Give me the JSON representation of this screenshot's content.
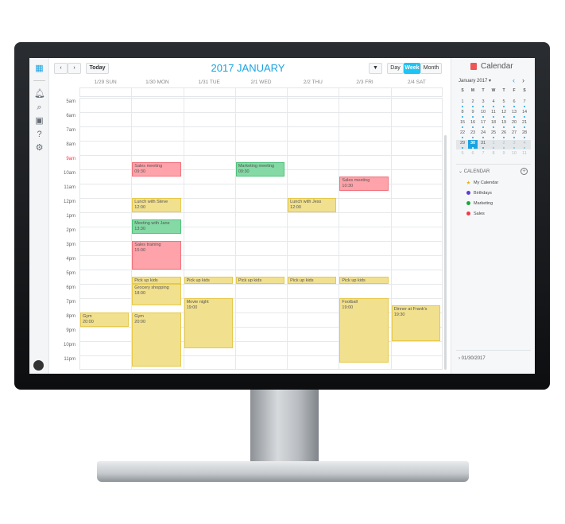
{
  "header": {
    "title": "2017 JANUARY",
    "today_label": "Today",
    "views": [
      "Day",
      "Week",
      "Month"
    ],
    "active_view": "Week"
  },
  "days": [
    "1/29 SUN",
    "1/30 MON",
    "1/31 TUE",
    "2/1 WED",
    "2/2 THU",
    "2/3 FRI",
    "2/4 SAT"
  ],
  "hours": [
    "5am",
    "6am",
    "7am",
    "8am",
    "9am",
    "10am",
    "11am",
    "12pm",
    "1pm",
    "2pm",
    "3pm",
    "4pm",
    "5pm",
    "6pm",
    "7pm",
    "8pm",
    "9pm",
    "10pm",
    "11pm"
  ],
  "current_hour_label": "9am",
  "colors": {
    "accent": "#1aa3e0",
    "yellow": "#f1e08e",
    "red": "#ffa3aa",
    "green": "#84d9a4",
    "birthdays": "#5b3fd0",
    "marketing": "#19a83c",
    "sales": "#f2394a",
    "my_calendar": "#e6b800"
  },
  "events": [
    {
      "title": "Sales meeting",
      "time": "09:30",
      "day": 1,
      "start": 9.5,
      "end": 10.5,
      "color": "red"
    },
    {
      "title": "Marketing meeting",
      "time": "09:30",
      "day": 3,
      "start": 9.5,
      "end": 10.5,
      "color": "green"
    },
    {
      "title": "Sales meeting",
      "time": "10:30",
      "day": 5,
      "start": 10.5,
      "end": 11.5,
      "color": "red"
    },
    {
      "title": "Lunch with Steve",
      "time": "12:00",
      "day": 1,
      "start": 12,
      "end": 13,
      "color": "yellow"
    },
    {
      "title": "Lunch with Jess",
      "time": "12:00",
      "day": 4,
      "start": 12,
      "end": 13,
      "color": "yellow"
    },
    {
      "title": "Meeting with Jane",
      "time": "13:30",
      "day": 1,
      "start": 13.5,
      "end": 14.5,
      "color": "green"
    },
    {
      "title": "Sales training",
      "time": "15:00",
      "day": 1,
      "start": 15,
      "end": 17,
      "color": "red"
    },
    {
      "title": "Pick up kids",
      "time": "",
      "day": 1,
      "start": 17.5,
      "end": 18,
      "color": "yellow"
    },
    {
      "title": "Pick up kids",
      "time": "",
      "day": 2,
      "start": 17.5,
      "end": 18,
      "color": "yellow"
    },
    {
      "title": "Pick up kids",
      "time": "",
      "day": 3,
      "start": 17.5,
      "end": 18,
      "color": "yellow"
    },
    {
      "title": "Pick up kids",
      "time": "",
      "day": 4,
      "start": 17.5,
      "end": 18,
      "color": "yellow"
    },
    {
      "title": "Pick up kids",
      "time": "",
      "day": 5,
      "start": 17.5,
      "end": 18,
      "color": "yellow"
    },
    {
      "title": "Grocery shopping",
      "time": "18:00",
      "day": 1,
      "start": 18,
      "end": 19.5,
      "color": "yellow"
    },
    {
      "title": "Movie night",
      "time": "19:00",
      "day": 2,
      "start": 19,
      "end": 22.5,
      "color": "yellow"
    },
    {
      "title": "Football",
      "time": "19:00",
      "day": 5,
      "start": 19,
      "end": 23.5,
      "color": "yellow"
    },
    {
      "title": "Dinner at Frank's",
      "time": "19:30",
      "day": 6,
      "start": 19.5,
      "end": 22,
      "color": "yellow"
    },
    {
      "title": "Gym",
      "time": "20:00",
      "day": 0,
      "start": 20,
      "end": 21,
      "color": "yellow"
    },
    {
      "title": "Gym",
      "time": "20:00",
      "day": 1,
      "start": 20,
      "end": 23.75,
      "color": "yellow"
    }
  ],
  "sidebar": {
    "title": "Calendar",
    "month_label": "January 2017 ▾",
    "weekdays": [
      "S",
      "M",
      "T",
      "W",
      "T",
      "F",
      "S"
    ],
    "weeks": [
      [
        "1",
        "2",
        "3",
        "4",
        "5",
        "6",
        "7"
      ],
      [
        "8",
        "9",
        "10",
        "11",
        "12",
        "13",
        "14"
      ],
      [
        "15",
        "16",
        "17",
        "18",
        "19",
        "20",
        "21"
      ],
      [
        "22",
        "23",
        "24",
        "25",
        "26",
        "27",
        "28"
      ],
      [
        "29",
        "30",
        "31",
        "1",
        "2",
        "3",
        "4"
      ],
      [
        "5",
        "6",
        "7",
        "8",
        "9",
        "10",
        "11"
      ]
    ],
    "selected_day": "30",
    "section_label": "CALENDAR",
    "calendars": [
      {
        "name": "My Calendar",
        "color": "my_calendar",
        "star": true
      },
      {
        "name": "Birthdays",
        "color": "birthdays"
      },
      {
        "name": "Marketing",
        "color": "marketing"
      },
      {
        "name": "Sales",
        "color": "sales"
      }
    ],
    "footer_date": "01/30/2017"
  }
}
